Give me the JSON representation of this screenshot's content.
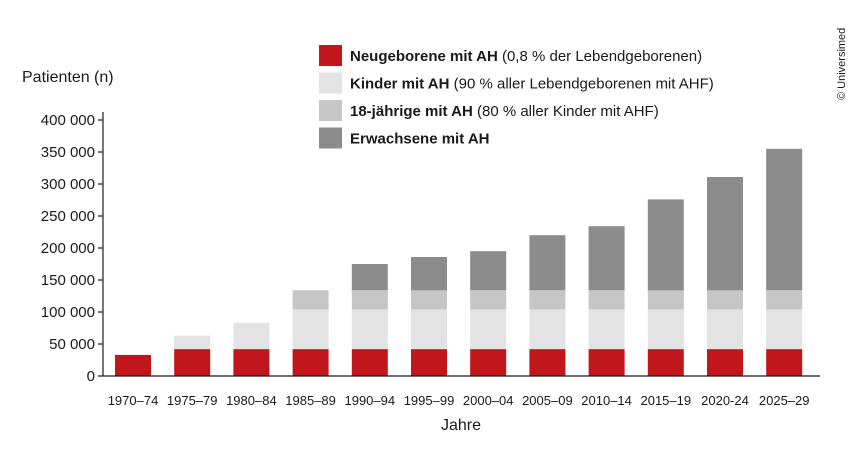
{
  "copyright": "© Universimed",
  "chart_data": {
    "type": "bar",
    "stacked": true,
    "ylabel": "Patienten (n)",
    "xlabel": "Jahre",
    "ylim": [
      0,
      400000
    ],
    "yticks": [
      0,
      50000,
      100000,
      150000,
      200000,
      250000,
      300000,
      350000,
      400000
    ],
    "ytick_labels": [
      "0",
      "50 000",
      "100 000",
      "150 000",
      "200 000",
      "250 000",
      "300 000",
      "350 000",
      "400 000"
    ],
    "categories": [
      "1970–74",
      "1975–79",
      "1980–84",
      "1985–89",
      "1990–94",
      "1995–99",
      "2000–04",
      "2005–09",
      "2010–14",
      "2015–19",
      "2020-24",
      "2025–29"
    ],
    "grid": false,
    "legend_position": "top",
    "series": [
      {
        "name": "Neugeborene mit AH",
        "note": "(0,8 % der Lebendgeborenen)",
        "color": "#c0161c",
        "values": [
          33000,
          42000,
          42000,
          42000,
          42000,
          42000,
          42000,
          42000,
          42000,
          42000,
          42000,
          42000
        ]
      },
      {
        "name": "Kinder mit AH",
        "note": "(90 % aller Lebendgeborenen mit AHF)",
        "color": "#e3e3e3",
        "values": [
          0,
          21000,
          41000,
          62000,
          62000,
          62000,
          62000,
          62000,
          62000,
          62000,
          62000,
          62000
        ]
      },
      {
        "name": "18-jährige mit AH",
        "note": "(80 % aller Kinder mit AHF)",
        "color": "#c6c6c6",
        "values": [
          0,
          0,
          0,
          30000,
          30000,
          30000,
          30000,
          30000,
          30000,
          30000,
          30000,
          30000
        ]
      },
      {
        "name": "Erwachsene mit AH",
        "note": "",
        "color": "#8c8c8c",
        "values": [
          0,
          0,
          0,
          0,
          41000,
          52000,
          61000,
          86000,
          100000,
          142000,
          177000,
          221000
        ]
      }
    ]
  }
}
